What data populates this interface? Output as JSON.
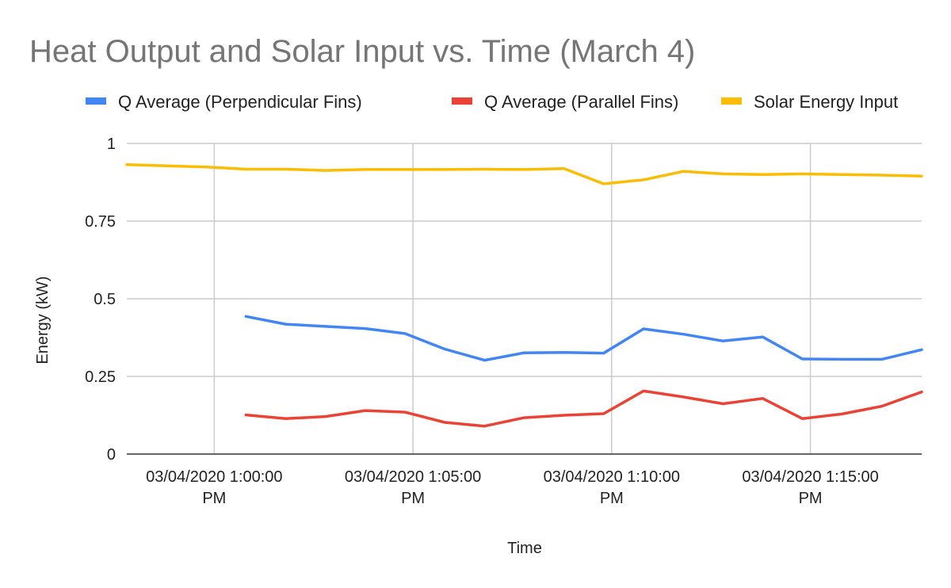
{
  "chart_data": {
    "type": "line",
    "title": "Heat Output and Solar Input vs. Time (March 4)",
    "xlabel": "Time",
    "ylabel": "Energy (kW)",
    "ylim": [
      0,
      1
    ],
    "y_ticks": [
      {
        "value": 0,
        "label": "0"
      },
      {
        "value": 0.25,
        "label": "0.25"
      },
      {
        "value": 0.5,
        "label": "0.5"
      },
      {
        "value": 0.75,
        "label": "0.75"
      },
      {
        "value": 1,
        "label": "1"
      }
    ],
    "x_range_minutes": [
      57.8,
      77.8
    ],
    "x_ticks": [
      {
        "minute": 60,
        "line1": "03/04/2020 1:00:00",
        "line2": "PM"
      },
      {
        "minute": 65,
        "line1": "03/04/2020 1:05:00",
        "line2": "PM"
      },
      {
        "minute": 70,
        "line1": "03/04/2020 1:10:00",
        "line2": "PM"
      },
      {
        "minute": 75,
        "line1": "03/04/2020 1:15:00",
        "line2": "PM"
      }
    ],
    "grid": true,
    "legend_position": "top",
    "series": [
      {
        "name": "Q Average (Perpendicular Fins)",
        "color": "#4285f4",
        "points": [
          [
            60.8,
            0.443
          ],
          [
            61.8,
            0.418
          ],
          [
            62.8,
            0.411
          ],
          [
            63.8,
            0.404
          ],
          [
            64.8,
            0.388
          ],
          [
            65.8,
            0.338
          ],
          [
            66.8,
            0.302
          ],
          [
            67.8,
            0.326
          ],
          [
            68.8,
            0.327
          ],
          [
            69.8,
            0.325
          ],
          [
            70.8,
            0.403
          ],
          [
            71.8,
            0.386
          ],
          [
            72.8,
            0.364
          ],
          [
            73.8,
            0.377
          ],
          [
            74.8,
            0.306
          ],
          [
            75.8,
            0.305
          ],
          [
            76.8,
            0.305
          ],
          [
            77.8,
            0.336
          ]
        ]
      },
      {
        "name": "Q Average (Parallel Fins)",
        "color": "#ea4335",
        "points": [
          [
            60.8,
            0.126
          ],
          [
            61.8,
            0.114
          ],
          [
            62.8,
            0.121
          ],
          [
            63.8,
            0.14
          ],
          [
            64.8,
            0.135
          ],
          [
            65.8,
            0.102
          ],
          [
            66.8,
            0.09
          ],
          [
            67.8,
            0.117
          ],
          [
            68.8,
            0.125
          ],
          [
            69.8,
            0.13
          ],
          [
            70.8,
            0.203
          ],
          [
            71.8,
            0.184
          ],
          [
            72.8,
            0.162
          ],
          [
            73.8,
            0.179
          ],
          [
            74.8,
            0.114
          ],
          [
            75.8,
            0.129
          ],
          [
            76.8,
            0.154
          ],
          [
            77.8,
            0.2
          ]
        ]
      },
      {
        "name": "Solar Energy Input",
        "color": "#fbbc04",
        "points": [
          [
            57.8,
            0.932
          ],
          [
            58.8,
            0.928
          ],
          [
            59.8,
            0.924
          ],
          [
            60.8,
            0.917
          ],
          [
            61.8,
            0.917
          ],
          [
            62.8,
            0.913
          ],
          [
            63.8,
            0.916
          ],
          [
            64.8,
            0.916
          ],
          [
            65.8,
            0.916
          ],
          [
            66.8,
            0.917
          ],
          [
            67.8,
            0.916
          ],
          [
            68.8,
            0.919
          ],
          [
            69.8,
            0.87
          ],
          [
            70.8,
            0.883
          ],
          [
            71.8,
            0.91
          ],
          [
            72.8,
            0.902
          ],
          [
            73.8,
            0.9
          ],
          [
            74.8,
            0.902
          ],
          [
            75.8,
            0.9
          ],
          [
            76.8,
            0.898
          ],
          [
            77.8,
            0.895
          ]
        ]
      }
    ]
  }
}
